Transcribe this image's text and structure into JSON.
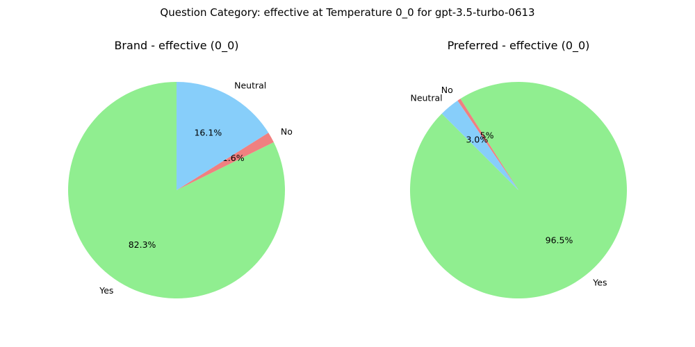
{
  "figure": {
    "title": "Question Category: effective at Temperature 0_0 for gpt-3.5-turbo-0613"
  },
  "chart_data": [
    {
      "type": "pie",
      "title": "Brand - effective (0_0)",
      "start_angle_deg": 90,
      "direction": "counterclockwise",
      "slices": [
        {
          "label": "Yes",
          "pct_label": "82.3%",
          "value": 82.3,
          "color": "#90EE90"
        },
        {
          "label": "No",
          "pct_label": "1.6%",
          "value": 1.6,
          "color": "#F08080"
        },
        {
          "label": "Neutral",
          "pct_label": "16.1%",
          "value": 16.1,
          "color": "#87CEFA"
        }
      ]
    },
    {
      "type": "pie",
      "title": "Preferred - effective (0_0)",
      "start_angle_deg": 135,
      "direction": "counterclockwise",
      "slices": [
        {
          "label": "Yes",
          "pct_label": "96.5%",
          "value": 96.5,
          "color": "#90EE90"
        },
        {
          "label": "No",
          "pct_label": "0.5%",
          "value": 0.5,
          "color": "#F08080"
        },
        {
          "label": "Neutral",
          "pct_label": "3.0%",
          "value": 3.0,
          "color": "#87CEFA"
        }
      ]
    }
  ]
}
